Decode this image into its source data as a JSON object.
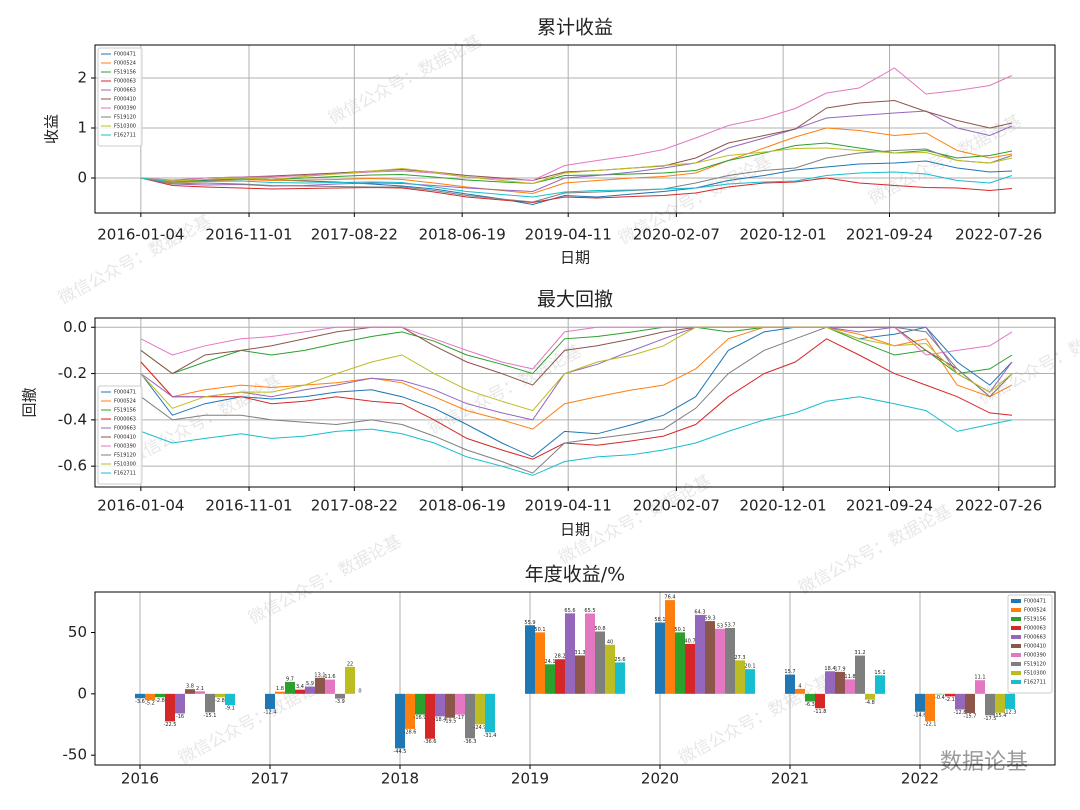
{
  "chart_data": [
    {
      "type": "line",
      "title": "累计收益",
      "xlabel": "日期",
      "ylabel": "收益",
      "grid": true,
      "legend": "upper left",
      "x": [
        "2016-01-04",
        "2016-04-01",
        "2016-07-01",
        "2016-10-10",
        "2017-01-03",
        "2017-04-05",
        "2017-07-03",
        "2017-10-09",
        "2018-01-02",
        "2018-04-02",
        "2018-07-02",
        "2018-10-08",
        "2019-01-02",
        "2019-04-01",
        "2019-07-01",
        "2019-10-08",
        "2020-01-02",
        "2020-04-01",
        "2020-07-01",
        "2020-10-09",
        "2021-01-04",
        "2021-04-01",
        "2021-07-01",
        "2021-10-08",
        "2022-01-04",
        "2022-04-01",
        "2022-07-01",
        "2022-09-01"
      ],
      "xlim": [
        "2015-08-29",
        "2022-12-30"
      ],
      "xticks": [
        "2016-01-04",
        "2016-11-01",
        "2017-08-22",
        "2018-06-19",
        "2019-04-11",
        "2020-02-07",
        "2020-12-01",
        "2021-09-24",
        "2022-07-26"
      ],
      "ylim": [
        -0.7,
        2.66
      ],
      "yticks": [
        0,
        1,
        2
      ],
      "series": [
        {
          "name": "F000471",
          "color": "#1f77b4",
          "values": [
            0,
            -0.08,
            -0.05,
            -0.02,
            -0.04,
            -0.06,
            -0.08,
            -0.12,
            -0.16,
            -0.22,
            -0.32,
            -0.42,
            -0.53,
            -0.35,
            -0.38,
            -0.32,
            -0.27,
            -0.2,
            -0.05,
            0.05,
            0.16,
            0.22,
            0.28,
            0.3,
            0.34,
            0.2,
            0.12,
            0.14
          ]
        },
        {
          "name": "F000524",
          "color": "#ff7f0e",
          "values": [
            0,
            -0.1,
            -0.07,
            -0.03,
            -0.05,
            -0.04,
            -0.03,
            -0.01,
            -0.03,
            -0.1,
            -0.18,
            -0.25,
            -0.31,
            -0.1,
            -0.05,
            0,
            0.03,
            0.1,
            0.35,
            0.6,
            0.82,
            1.0,
            0.95,
            0.85,
            0.9,
            0.55,
            0.4,
            0.48
          ]
        },
        {
          "name": "F519156",
          "color": "#2ca02c",
          "values": [
            0,
            -0.08,
            -0.04,
            0,
            -0.03,
            0,
            0.03,
            0.06,
            0.07,
            0.02,
            -0.04,
            -0.08,
            -0.11,
            0.05,
            0.06,
            0.08,
            0.1,
            0.15,
            0.35,
            0.5,
            0.65,
            0.7,
            0.6,
            0.5,
            0.55,
            0.4,
            0.45,
            0.54
          ]
        },
        {
          "name": "F000063",
          "color": "#d62728",
          "values": [
            0,
            -0.15,
            -0.18,
            -0.2,
            -0.22,
            -0.21,
            -0.2,
            -0.19,
            -0.2,
            -0.28,
            -0.38,
            -0.44,
            -0.49,
            -0.38,
            -0.4,
            -0.37,
            -0.35,
            -0.3,
            -0.18,
            -0.1,
            -0.08,
            0,
            -0.1,
            -0.15,
            -0.19,
            -0.2,
            -0.25,
            -0.21
          ]
        },
        {
          "name": "F000663",
          "color": "#9467bd",
          "values": [
            0,
            -0.12,
            -0.14,
            -0.13,
            -0.16,
            -0.15,
            -0.12,
            -0.1,
            -0.11,
            -0.15,
            -0.2,
            -0.24,
            -0.27,
            0,
            0.05,
            0.12,
            0.2,
            0.3,
            0.6,
            0.8,
            0.98,
            1.2,
            1.25,
            1.3,
            1.34,
            1.0,
            0.85,
            1.04
          ]
        },
        {
          "name": "F000410",
          "color": "#8c564b",
          "values": [
            0,
            -0.05,
            0,
            0.02,
            0.04,
            0.07,
            0.1,
            0.14,
            0.17,
            0.12,
            0.05,
            0,
            -0.05,
            0.12,
            0.15,
            0.2,
            0.24,
            0.4,
            0.7,
            0.85,
            0.98,
            1.4,
            1.5,
            1.55,
            1.33,
            1.15,
            1.0,
            1.1
          ]
        },
        {
          "name": "F000390",
          "color": "#e377c2",
          "values": [
            0,
            -0.04,
            0,
            0.02,
            0.02,
            0.05,
            0.08,
            0.12,
            0.14,
            0.1,
            0.02,
            -0.02,
            -0.05,
            0.25,
            0.35,
            0.45,
            0.57,
            0.8,
            1.05,
            1.2,
            1.39,
            1.7,
            1.8,
            2.2,
            1.68,
            1.75,
            1.85,
            2.05
          ]
        },
        {
          "name": "F519120",
          "color": "#7f7f7f",
          "values": [
            0,
            -0.12,
            -0.1,
            -0.12,
            -0.15,
            -0.16,
            -0.17,
            -0.18,
            -0.18,
            -0.25,
            -0.35,
            -0.42,
            -0.48,
            -0.3,
            -0.28,
            -0.25,
            -0.22,
            -0.1,
            0.05,
            0.15,
            0.2,
            0.4,
            0.5,
            0.55,
            0.58,
            0.35,
            0.3,
            0.45
          ]
        },
        {
          "name": "F510300",
          "color": "#bcbd22",
          "values": [
            0,
            -0.06,
            -0.03,
            0,
            -0.03,
            0.03,
            0.08,
            0.14,
            0.19,
            0.12,
            0.02,
            -0.05,
            -0.11,
            0.1,
            0.15,
            0.2,
            0.25,
            0.3,
            0.45,
            0.52,
            0.59,
            0.6,
            0.55,
            0.5,
            0.51,
            0.35,
            0.3,
            0.4
          ]
        },
        {
          "name": "F162711",
          "color": "#17becf",
          "values": [
            0,
            -0.08,
            -0.07,
            -0.06,
            -0.09,
            -0.1,
            -0.09,
            -0.08,
            -0.09,
            -0.18,
            -0.27,
            -0.33,
            -0.38,
            -0.28,
            -0.25,
            -0.24,
            -0.22,
            -0.2,
            -0.12,
            -0.08,
            -0.06,
            0.05,
            0.1,
            0.12,
            0.08,
            -0.05,
            -0.1,
            0.05
          ]
        }
      ]
    },
    {
      "type": "line",
      "title": "最大回撤",
      "xlabel": "日期",
      "ylabel": "回撤",
      "grid": true,
      "legend": "lower left",
      "x": [
        "2016-01-04",
        "2016-04-01",
        "2016-07-01",
        "2016-10-10",
        "2017-01-03",
        "2017-04-05",
        "2017-07-03",
        "2017-10-09",
        "2018-01-02",
        "2018-04-02",
        "2018-07-02",
        "2018-10-08",
        "2019-01-02",
        "2019-04-01",
        "2019-07-01",
        "2019-10-08",
        "2020-01-02",
        "2020-04-01",
        "2020-07-01",
        "2020-10-09",
        "2021-01-04",
        "2021-04-01",
        "2021-07-01",
        "2021-10-08",
        "2022-01-04",
        "2022-04-01",
        "2022-07-01",
        "2022-09-01"
      ],
      "xlim": [
        "2015-08-29",
        "2022-12-30"
      ],
      "xticks": [
        "2016-01-04",
        "2016-11-01",
        "2017-08-22",
        "2018-06-19",
        "2019-04-11",
        "2020-02-07",
        "2020-12-01",
        "2021-09-24",
        "2022-07-26"
      ],
      "ylim": [
        -0.69,
        0.04
      ],
      "yticks": [
        {
          "value": 0,
          "label": "0.0"
        },
        -0.2,
        -0.4,
        -0.6
      ],
      "series": [
        {
          "name": "F000471",
          "color": "#1f77b4",
          "values": [
            -0.2,
            -0.38,
            -0.33,
            -0.3,
            -0.31,
            -0.3,
            -0.28,
            -0.27,
            -0.3,
            -0.35,
            -0.42,
            -0.5,
            -0.56,
            -0.45,
            -0.46,
            -0.42,
            -0.38,
            -0.3,
            -0.1,
            -0.02,
            0,
            0,
            -0.05,
            -0.03,
            0,
            -0.15,
            -0.25,
            -0.15
          ]
        },
        {
          "name": "F000524",
          "color": "#ff7f0e",
          "values": [
            -0.15,
            -0.3,
            -0.27,
            -0.25,
            -0.26,
            -0.25,
            -0.24,
            -0.22,
            -0.24,
            -0.3,
            -0.36,
            -0.4,
            -0.44,
            -0.33,
            -0.3,
            -0.27,
            -0.25,
            -0.18,
            -0.05,
            0,
            0,
            0,
            -0.03,
            -0.08,
            -0.05,
            -0.25,
            -0.3,
            -0.25
          ]
        },
        {
          "name": "F519156",
          "color": "#2ca02c",
          "values": [
            -0.1,
            -0.2,
            -0.15,
            -0.1,
            -0.12,
            -0.1,
            -0.07,
            -0.04,
            -0.02,
            -0.06,
            -0.12,
            -0.16,
            -0.2,
            -0.05,
            -0.04,
            -0.02,
            0,
            0,
            -0.02,
            0,
            0,
            0,
            -0.06,
            -0.12,
            -0.1,
            -0.2,
            -0.18,
            -0.12
          ]
        },
        {
          "name": "F000063",
          "color": "#d62728",
          "values": [
            -0.15,
            -0.3,
            -0.3,
            -0.3,
            -0.33,
            -0.32,
            -0.3,
            -0.32,
            -0.33,
            -0.4,
            -0.48,
            -0.53,
            -0.57,
            -0.5,
            -0.51,
            -0.49,
            -0.47,
            -0.42,
            -0.3,
            -0.2,
            -0.15,
            -0.05,
            -0.12,
            -0.2,
            -0.25,
            -0.3,
            -0.37,
            -0.38
          ]
        },
        {
          "name": "F000663",
          "color": "#9467bd",
          "values": [
            -0.2,
            -0.3,
            -0.3,
            -0.28,
            -0.3,
            -0.27,
            -0.25,
            -0.22,
            -0.23,
            -0.27,
            -0.33,
            -0.37,
            -0.4,
            -0.2,
            -0.16,
            -0.1,
            -0.05,
            0,
            0,
            0,
            0,
            0,
            -0.02,
            0,
            0,
            -0.2,
            -0.28,
            -0.15
          ]
        },
        {
          "name": "F000410",
          "color": "#8c564b",
          "values": [
            -0.1,
            -0.2,
            -0.12,
            -0.1,
            -0.08,
            -0.05,
            -0.02,
            0,
            0,
            -0.08,
            -0.15,
            -0.2,
            -0.25,
            -0.1,
            -0.08,
            -0.05,
            -0.02,
            0,
            0,
            0,
            0,
            0,
            0,
            0,
            -0.1,
            -0.18,
            -0.3,
            -0.2
          ]
        },
        {
          "name": "F000390",
          "color": "#e377c2",
          "values": [
            -0.05,
            -0.12,
            -0.08,
            -0.05,
            -0.04,
            -0.02,
            0,
            0,
            0,
            -0.05,
            -0.1,
            -0.15,
            -0.18,
            -0.02,
            0,
            0,
            0,
            0,
            0,
            0,
            0,
            0,
            0,
            0,
            -0.12,
            -0.1,
            -0.08,
            -0.02
          ]
        },
        {
          "name": "F519120",
          "color": "#7f7f7f",
          "values": [
            -0.3,
            -0.4,
            -0.38,
            -0.38,
            -0.4,
            -0.41,
            -0.42,
            -0.4,
            -0.42,
            -0.47,
            -0.53,
            -0.58,
            -0.63,
            -0.5,
            -0.48,
            -0.46,
            -0.44,
            -0.35,
            -0.2,
            -0.1,
            -0.05,
            0,
            0,
            0,
            -0.02,
            -0.18,
            -0.3,
            -0.2
          ]
        },
        {
          "name": "F510300",
          "color": "#bcbd22",
          "values": [
            -0.2,
            -0.35,
            -0.3,
            -0.28,
            -0.28,
            -0.25,
            -0.2,
            -0.15,
            -0.12,
            -0.2,
            -0.27,
            -0.32,
            -0.36,
            -0.2,
            -0.15,
            -0.12,
            -0.08,
            0,
            0,
            0,
            0,
            0,
            -0.05,
            -0.08,
            -0.07,
            -0.2,
            -0.28,
            -0.2
          ]
        },
        {
          "name": "F162711",
          "color": "#17becf",
          "values": [
            -0.45,
            -0.5,
            -0.48,
            -0.46,
            -0.48,
            -0.47,
            -0.45,
            -0.44,
            -0.46,
            -0.5,
            -0.56,
            -0.6,
            -0.64,
            -0.58,
            -0.56,
            -0.55,
            -0.53,
            -0.5,
            -0.45,
            -0.4,
            -0.37,
            -0.32,
            -0.3,
            -0.33,
            -0.36,
            -0.45,
            -0.42,
            -0.4
          ]
        }
      ]
    },
    {
      "type": "bar",
      "title": "年度收益/%",
      "grid": "x",
      "legend": "upper right",
      "categories": [
        "2016",
        "2017",
        "2018",
        "2019",
        "2020",
        "2021",
        "2022"
      ],
      "ylim": [
        -58,
        83
      ],
      "yticks": [
        -50,
        0,
        50
      ],
      "series": [
        {
          "name": "F000471",
          "color": "#1f77b4",
          "values": [
            -3.6,
            -12.4,
            -44.5,
            55.9,
            58.1,
            15.7,
            -14.6
          ]
        },
        {
          "name": "F000524",
          "color": "#ff7f0e",
          "values": [
            -5.2,
            1.8,
            -28.6,
            50.1,
            76.4,
            4,
            -22.1
          ]
        },
        {
          "name": "F519156",
          "color": "#2ca02c",
          "values": [
            -2.8,
            9.7,
            -16.9,
            24.1,
            50.1,
            -6.3,
            -0.4
          ]
        },
        {
          "name": "F000063",
          "color": "#d62728",
          "values": [
            -22.5,
            3.4,
            -36.6,
            28.2,
            40.7,
            -11.8,
            -2.1
          ]
        },
        {
          "name": "F000663",
          "color": "#9467bd",
          "values": [
            -16,
            5.9,
            -18.4,
            65.6,
            64.3,
            18.4,
            -12.8
          ]
        },
        {
          "name": "F000410",
          "color": "#8c564b",
          "values": [
            3.8,
            13.1,
            -19.5,
            31.3,
            59.3,
            17.9,
            -15.7
          ]
        },
        {
          "name": "F000390",
          "color": "#e377c2",
          "values": [
            2.1,
            11.6,
            -17,
            65.5,
            53,
            11.8,
            11.1
          ]
        },
        {
          "name": "F519120",
          "color": "#7f7f7f",
          "values": [
            -15.1,
            -3.9,
            -36.3,
            50.8,
            53.7,
            31.2,
            -17.5
          ]
        },
        {
          "name": "F510300",
          "color": "#bcbd22",
          "values": [
            -2.8,
            22,
            -24.9,
            40,
            27.3,
            -4.8,
            -15.4
          ]
        },
        {
          "name": "F162711",
          "color": "#17becf",
          "values": [
            -9.1,
            0,
            -31.4,
            25.6,
            20.1,
            15.1,
            -12.3
          ]
        }
      ]
    }
  ],
  "watermark": "微信公众号：数据论基",
  "logo": "数据论基"
}
